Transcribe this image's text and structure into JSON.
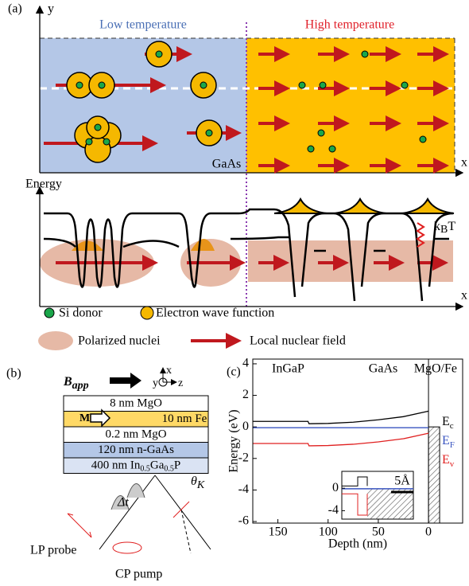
{
  "panel_a": {
    "label": "(a)",
    "y_axis": "y",
    "x_axis": "x",
    "low": "Low temperature",
    "high": "High temperature",
    "material": "GaAs",
    "energy_axis": "Energy",
    "x_axis_2": "x",
    "kbt": {
      "k": "k",
      "sub": "B",
      "t": "T"
    },
    "legend": [
      "Si donor",
      "Electron wave function",
      "Polarized nuclei",
      "Local nuclear field"
    ]
  },
  "panel_b": {
    "label": "(b)",
    "field": {
      "main": "B",
      "sub": "app"
    },
    "axes": [
      "x",
      "y",
      "z"
    ],
    "magnet": "M",
    "layers": [
      [
        "8 nm MgO"
      ],
      [
        "10 nm Fe"
      ],
      [
        "0.2 nm MgO"
      ],
      [
        "120 nm n-GaAs"
      ],
      [
        "400 nm In",
        "0.5",
        "Ga",
        "0.5",
        "P"
      ]
    ],
    "theta": {
      "main": "θ",
      "sub": "K"
    },
    "delay": "Δt",
    "probe": "LP probe",
    "pump": "CP pump"
  },
  "chart_data": {
    "type": "line",
    "label": "(c)",
    "xlabel": "Depth (nm)",
    "ylabel": "Energy (eV)",
    "regions": [
      "InGaP",
      "GaAs",
      "MgO/Fe"
    ],
    "x": [
      175,
      150,
      125,
      120,
      119,
      100,
      75,
      50,
      25,
      0
    ],
    "series": [
      {
        "name": "E",
        "subscript": "c",
        "color": "#000000",
        "values": [
          0.35,
          0.35,
          0.35,
          0.35,
          0.2,
          0.22,
          0.3,
          0.45,
          0.65,
          1.0
        ]
      },
      {
        "name": "E",
        "subscript": "F",
        "color": "#3a55c0",
        "values": [
          -0.05,
          -0.05,
          -0.05,
          -0.05,
          -0.05,
          -0.05,
          -0.05,
          -0.05,
          -0.05,
          -0.05
        ]
      },
      {
        "name": "E",
        "subscript": "v",
        "color": "#e02020",
        "values": [
          -1.05,
          -1.05,
          -1.05,
          -1.05,
          -1.2,
          -1.18,
          -1.1,
          -0.95,
          -0.75,
          -0.4
        ]
      }
    ],
    "xlim": [
      175,
      -34
    ],
    "xticks": [
      150,
      100,
      50,
      0
    ],
    "ylim": [
      -6.1,
      4.3
    ],
    "yticks": [
      4,
      2,
      0,
      -2,
      -4,
      -6
    ],
    "inset": {
      "ylim": [
        -5.5,
        3
      ],
      "yticks": [
        0,
        -4
      ],
      "scale": "5Å"
    }
  }
}
